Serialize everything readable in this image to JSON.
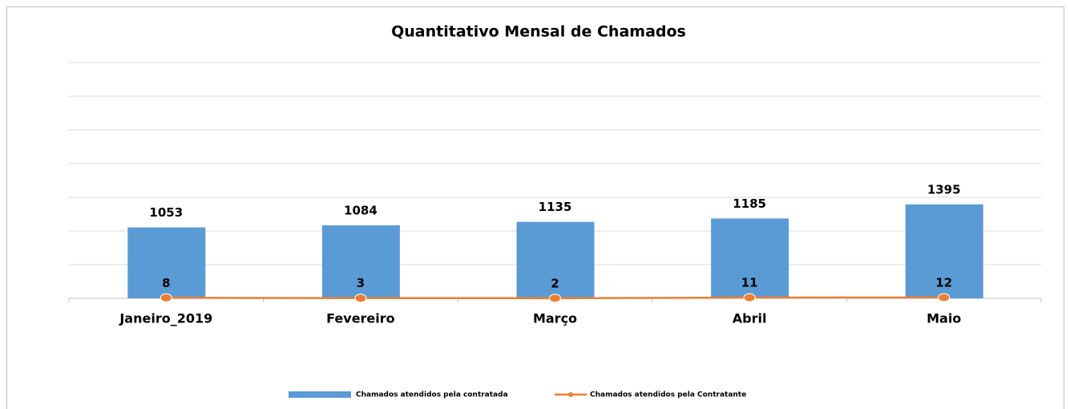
{
  "chart_data": {
    "type": "bar",
    "title": "Quantitativo Mensal de Chamados",
    "categories": [
      "Janeiro_2019",
      "Fevereiro",
      "Março",
      "Abril",
      "Maio"
    ],
    "series": [
      {
        "name": "Chamados atendidos pela contratada",
        "type": "bar",
        "color": "#5b9bd5",
        "values": [
          1053,
          1084,
          1135,
          1185,
          1395
        ]
      },
      {
        "name": "Chamados atendidos pela Contratante",
        "type": "line",
        "color": "#ed7d31",
        "values": [
          8,
          3,
          2,
          11,
          12
        ]
      }
    ],
    "ylim": [
      0,
      3500
    ],
    "yticks": [
      0,
      500,
      1000,
      1500,
      2000,
      2500,
      3000,
      3500
    ],
    "grid": true,
    "legend": "bottom"
  }
}
